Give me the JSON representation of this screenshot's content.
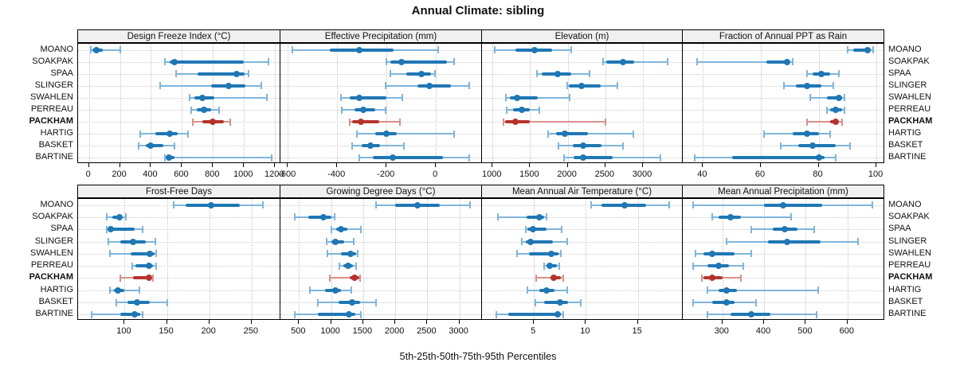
{
  "title": "Annual Climate: sibling",
  "xlabel": "5th-25th-50th-75th-95th Percentiles",
  "colors": {
    "blue": "#1f77b4",
    "blue_light": "#7fb5dc",
    "red": "#b5342e",
    "red_light": "#d8908b",
    "grid": "#c9c9c9",
    "header_bg": "#f0f0f0",
    "border": "#000000"
  },
  "chart_data": {
    "type": "dotplot-percentile-lattice",
    "percentile_labels": [
      "5th",
      "25th",
      "50th",
      "75th",
      "95th"
    ],
    "stations": [
      "MOANO",
      "SOAKPAK",
      "SPAA",
      "SLINGER",
      "SWAHLEN",
      "PERREAU",
      "PACKHAM",
      "HARTIG",
      "BASKET",
      "BARTINE"
    ],
    "highlight_station": "PACKHAM",
    "xlabel": "5th-25th-50th-75th-95th Percentiles",
    "panels": [
      {
        "title": "Design Freeze Index (°C)",
        "row": 0,
        "col": 0,
        "domain": [
          -70,
          1240
        ],
        "ticks": [
          0,
          200,
          400,
          600,
          800,
          1000,
          1200
        ],
        "values": [
          [
            10,
            25,
            50,
            90,
            200
          ],
          [
            490,
            520,
            550,
            1000,
            1160
          ],
          [
            560,
            700,
            950,
            1005,
            1030
          ],
          [
            460,
            790,
            900,
            1010,
            1110
          ],
          [
            650,
            680,
            730,
            810,
            1150
          ],
          [
            660,
            695,
            740,
            790,
            840
          ],
          [
            670,
            730,
            800,
            870,
            910
          ],
          [
            330,
            430,
            520,
            570,
            640
          ],
          [
            320,
            365,
            400,
            480,
            550
          ],
          [
            490,
            500,
            515,
            550,
            1180
          ]
        ]
      },
      {
        "title": "Effective Precipitation (mm)",
        "row": 0,
        "col": 1,
        "domain": [
          -630,
          190
        ],
        "ticks": [
          -600,
          -400,
          -200,
          0
        ],
        "values": [
          [
            -580,
            -430,
            -310,
            -170,
            10
          ],
          [
            -200,
            -185,
            -140,
            45,
            75
          ],
          [
            -185,
            -120,
            -60,
            -20,
            -5
          ],
          [
            -205,
            -75,
            -25,
            60,
            135
          ],
          [
            -385,
            -350,
            -310,
            -200,
            -135
          ],
          [
            -380,
            -330,
            -295,
            -245,
            -205
          ],
          [
            -350,
            -340,
            -305,
            -230,
            -145
          ],
          [
            -320,
            -245,
            -200,
            -160,
            75
          ],
          [
            -340,
            -300,
            -265,
            -225,
            -130
          ],
          [
            -310,
            -255,
            -175,
            30,
            135
          ]
        ]
      },
      {
        "title": "Elevation (m)",
        "row": 0,
        "col": 2,
        "domain": [
          860,
          3540
        ],
        "ticks": [
          1000,
          1500,
          2000,
          2500,
          3000
        ],
        "values": [
          [
            1030,
            1300,
            1560,
            1790,
            2050
          ],
          [
            2470,
            2510,
            2730,
            2880,
            3330
          ],
          [
            1590,
            1650,
            1870,
            2050,
            2290
          ],
          [
            1990,
            2010,
            2180,
            2440,
            2660
          ],
          [
            1180,
            1230,
            1330,
            1600,
            2020
          ],
          [
            1190,
            1270,
            1390,
            1500,
            1620
          ],
          [
            1150,
            1170,
            1310,
            1500,
            2500
          ],
          [
            1740,
            1850,
            1960,
            2270,
            2870
          ],
          [
            1880,
            2070,
            2210,
            2450,
            2740
          ],
          [
            1950,
            2080,
            2210,
            2600,
            3230
          ]
        ]
      },
      {
        "title": "Fraction of Annual PPT as Rain",
        "row": 0,
        "col": 3,
        "domain": [
          33,
          103
        ],
        "ticks": [
          40,
          60,
          80,
          100
        ],
        "values": [
          [
            90,
            92,
            97,
            98,
            99
          ],
          [
            38,
            62,
            69,
            70,
            71
          ],
          [
            76,
            78,
            81,
            84,
            87
          ],
          [
            68,
            72,
            76,
            81,
            85
          ],
          [
            77,
            83,
            87,
            88,
            89
          ],
          [
            83,
            84,
            86,
            88,
            89
          ],
          [
            76,
            84,
            86,
            87,
            88
          ],
          [
            61,
            71,
            76,
            80,
            84
          ],
          [
            67,
            73,
            78,
            86,
            91
          ],
          [
            37,
            50,
            80,
            82,
            86
          ]
        ]
      },
      {
        "title": "Frost-Free Days",
        "row": 1,
        "col": 0,
        "domain": [
          45,
          285
        ],
        "ticks": [
          100,
          150,
          200,
          250
        ],
        "values": [
          [
            158,
            172,
            202,
            236,
            263
          ],
          [
            79,
            85,
            94,
            97,
            101
          ],
          [
            79,
            81,
            84,
            112,
            121
          ],
          [
            81,
            95,
            110,
            125,
            136
          ],
          [
            83,
            107,
            130,
            135,
            137
          ],
          [
            109,
            113,
            129,
            133,
            137
          ],
          [
            95,
            110,
            129,
            131,
            133
          ],
          [
            83,
            87,
            92,
            100,
            117
          ],
          [
            90,
            103,
            115,
            130,
            150
          ],
          [
            61,
            95,
            112,
            118,
            121
          ]
        ]
      },
      {
        "title": "Growing Degree Days (°C)",
        "row": 1,
        "col": 1,
        "domain": [
          210,
          3365
        ],
        "ticks": [
          500,
          1000,
          1500,
          2000,
          2500,
          3000
        ],
        "values": [
          [
            1700,
            2000,
            2350,
            2700,
            3170
          ],
          [
            430,
            650,
            880,
            1000,
            1050
          ],
          [
            1000,
            1080,
            1160,
            1250,
            1460
          ],
          [
            930,
            1000,
            1070,
            1200,
            1350
          ],
          [
            940,
            1150,
            1300,
            1390,
            1410
          ],
          [
            1130,
            1190,
            1270,
            1340,
            1390
          ],
          [
            980,
            1290,
            1370,
            1440,
            1450
          ],
          [
            670,
            900,
            1070,
            1150,
            1310
          ],
          [
            800,
            1120,
            1330,
            1450,
            1700
          ],
          [
            430,
            800,
            1280,
            1380,
            1460
          ]
        ]
      },
      {
        "title": "Mean Annual Air Temperature (°C)",
        "row": 1,
        "col": 2,
        "domain": [
          0,
          19.4
        ],
        "ticks": [
          5,
          10,
          15
        ],
        "values": [
          [
            10.5,
            11.5,
            13.7,
            15.8,
            18.0
          ],
          [
            1.5,
            4.3,
            5.5,
            6.0,
            6.2
          ],
          [
            4.2,
            4.4,
            4.9,
            6.2,
            7.7
          ],
          [
            3.8,
            4.2,
            4.7,
            6.8,
            8.2
          ],
          [
            3.4,
            4.5,
            6.7,
            7.4,
            7.6
          ],
          [
            6.0,
            6.2,
            6.5,
            7.2,
            7.4
          ],
          [
            5.2,
            6.6,
            6.9,
            7.6,
            7.8
          ],
          [
            4.4,
            5.5,
            6.2,
            7.0,
            8.2
          ],
          [
            5.1,
            6.0,
            7.5,
            8.3,
            9.5
          ],
          [
            1.4,
            2.5,
            7.3,
            7.6,
            7.8
          ]
        ]
      },
      {
        "title": "Mean Annual Precipitation (mm)",
        "row": 1,
        "col": 3,
        "domain": [
          205,
          690
        ],
        "ticks": [
          300,
          400,
          500,
          600
        ],
        "values": [
          [
            230,
            400,
            445,
            540,
            660
          ],
          [
            275,
            290,
            320,
            345,
            465
          ],
          [
            370,
            420,
            450,
            480,
            520
          ],
          [
            310,
            410,
            455,
            535,
            625
          ],
          [
            235,
            255,
            275,
            330,
            370
          ],
          [
            230,
            265,
            290,
            315,
            350
          ],
          [
            250,
            255,
            275,
            300,
            345
          ],
          [
            265,
            290,
            310,
            335,
            530
          ],
          [
            230,
            275,
            310,
            330,
            380
          ],
          [
            265,
            320,
            370,
            415,
            525
          ]
        ]
      }
    ]
  }
}
